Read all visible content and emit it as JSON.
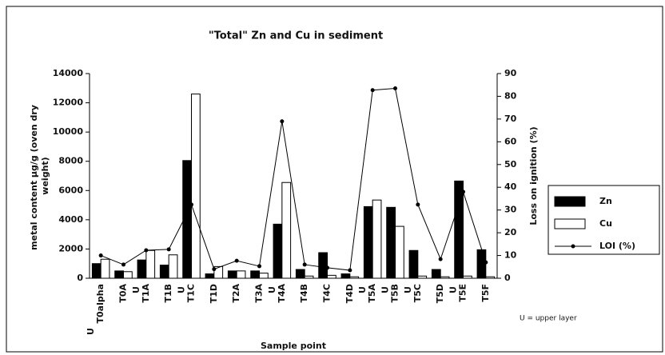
{
  "chart_data": {
    "type": "bar_line",
    "title": "\"Total\" Zn and Cu in sediment",
    "xlabel": "Sample point",
    "ylabel": [
      "metal content µg/g (oven dry",
      "weight)"
    ],
    "y2label": "Loss on ignition (%)",
    "categories": [
      "T0alpha",
      "T0A",
      "T1A",
      "T1B",
      "T1C",
      "T1D",
      "T2A",
      "T3A",
      "T4A",
      "T4B",
      "T4C",
      "T4D",
      "T5A",
      "T5B",
      "T5C",
      "T5D",
      "T5E",
      "T5F"
    ],
    "layer_labels": [
      "U",
      null,
      "U",
      null,
      "U",
      null,
      null,
      null,
      "U",
      null,
      null,
      null,
      "U",
      "U",
      "U",
      null,
      "U",
      null
    ],
    "annotation": "U = upper layer",
    "series": [
      {
        "name": "Zn",
        "type": "bar",
        "color": "#000000",
        "values": [
          1000,
          500,
          1250,
          900,
          8050,
          300,
          500,
          500,
          3700,
          600,
          1750,
          300,
          4900,
          4850,
          1900,
          600,
          6650,
          1950
        ]
      },
      {
        "name": "Cu",
        "type": "bar",
        "color": "#ffffff",
        "values": [
          1300,
          450,
          1900,
          1600,
          12600,
          800,
          500,
          350,
          6550,
          150,
          200,
          100,
          5350,
          3550,
          150,
          100,
          150,
          100
        ]
      },
      {
        "name": "LOI (%)",
        "type": "line",
        "axis": "y2",
        "color": "#000000",
        "values": [
          10,
          6,
          12.3,
          12.7,
          32.4,
          4,
          7.7,
          5.3,
          69,
          6,
          4.6,
          3.5,
          82.7,
          83.5,
          32.4,
          8.4,
          38,
          7
        ]
      }
    ],
    "ylim": [
      0,
      14000
    ],
    "yticks": [
      0,
      2000,
      4000,
      6000,
      8000,
      10000,
      12000,
      14000
    ],
    "y2lim": [
      0,
      90
    ],
    "y2ticks": [
      0,
      10,
      20,
      30,
      40,
      50,
      60,
      70,
      80,
      90
    ],
    "legend": "right"
  }
}
